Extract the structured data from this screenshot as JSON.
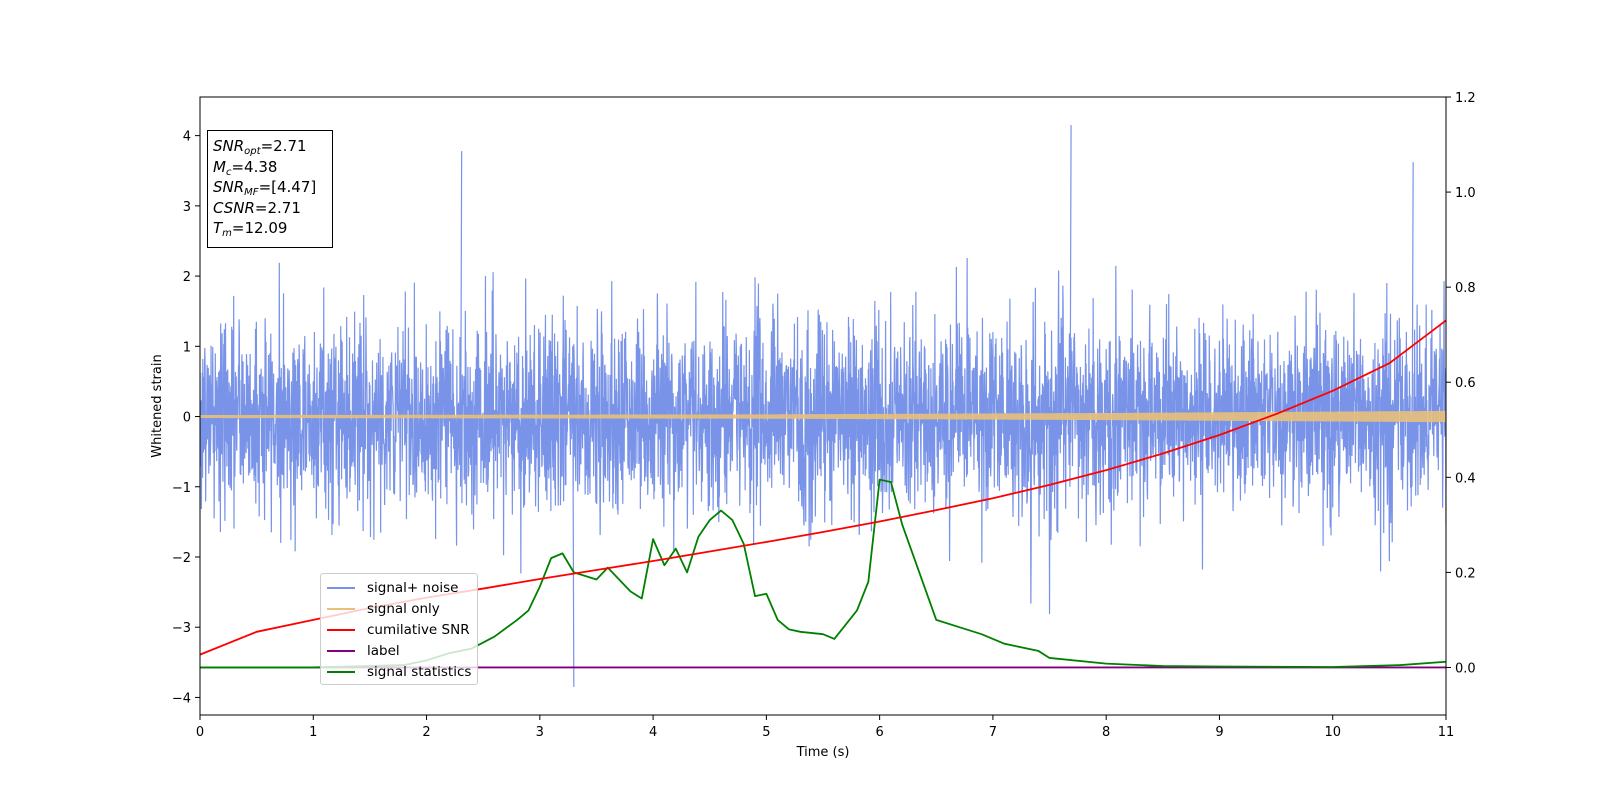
{
  "chart_data": {
    "type": "line",
    "xlabel": "Time (s)",
    "ylabel": "Whitened strain",
    "xlim": [
      0,
      11
    ],
    "ylim": [
      -4.25,
      4.55
    ],
    "y2lim": [
      -0.1,
      1.2
    ],
    "x_ticks": [
      "0",
      "1",
      "2",
      "3",
      "4",
      "5",
      "6",
      "7",
      "8",
      "9",
      "10",
      "11"
    ],
    "y_ticks": [
      "−4",
      "−3",
      "−2",
      "−1",
      "0",
      "1",
      "2",
      "3",
      "4"
    ],
    "y2_ticks": [
      "0.0",
      "0.2",
      "0.4",
      "0.6",
      "0.8",
      "1.0",
      "1.2"
    ],
    "stats": {
      "snr_opt": {
        "base": "SNR",
        "sub": "opt",
        "value": "=2.71"
      },
      "mc": {
        "base": "M",
        "sub": "c",
        "value": "=4.38"
      },
      "snr_mf": {
        "base": "SNR",
        "sub": "MF",
        "value": "=[4.47]"
      },
      "csnr": {
        "base": "CSNR",
        "value": "=2.71"
      },
      "tm": {
        "base": "T",
        "sub": "m",
        "value": "=12.09"
      }
    },
    "legend_position": "lower-left",
    "series": [
      {
        "name": "signal+ noise",
        "color": "#7893e8",
        "axis": "left",
        "description": "noise band approx -2 to +2, spikes to +4.15 and -3.85"
      },
      {
        "name": "signal only",
        "color": "#e8c07a",
        "axis": "left",
        "x": [
          0,
          5,
          8,
          11
        ],
        "amplitude": [
          0.02,
          0.03,
          0.05,
          0.08
        ]
      },
      {
        "name": "cumilative SNR",
        "color": "#ff0000",
        "axis": "right",
        "x": [
          0,
          0.5,
          1,
          1.5,
          2,
          2.5,
          3,
          3.5,
          4,
          4.5,
          5,
          5.5,
          6,
          6.5,
          7,
          7.5,
          8,
          8.5,
          9,
          9.5,
          10,
          10.5,
          11
        ],
        "values": [
          0.027,
          0.075,
          0.1,
          0.125,
          0.147,
          0.166,
          0.186,
          0.205,
          0.224,
          0.244,
          0.264,
          0.285,
          0.307,
          0.331,
          0.356,
          0.384,
          0.415,
          0.45,
          0.489,
          0.533,
          0.582,
          0.64,
          0.73
        ]
      },
      {
        "name": "label",
        "color": "#800080",
        "axis": "right",
        "x": [
          0,
          11
        ],
        "values": [
          0.0,
          0.0
        ]
      },
      {
        "name": "signal statistics",
        "color": "#008000",
        "axis": "right",
        "x": [
          0,
          1,
          1.8,
          2.0,
          2.2,
          2.4,
          2.6,
          2.8,
          2.9,
          3.0,
          3.1,
          3.2,
          3.3,
          3.5,
          3.6,
          3.8,
          3.9,
          4.0,
          4.1,
          4.2,
          4.3,
          4.4,
          4.5,
          4.6,
          4.7,
          4.8,
          4.9,
          5.0,
          5.1,
          5.2,
          5.3,
          5.5,
          5.6,
          5.8,
          5.9,
          6.0,
          6.1,
          6.2,
          6.5,
          6.7,
          6.9,
          7.1,
          7.4,
          7.5,
          8.0,
          8.5,
          9.0,
          10.0,
          10.6,
          11.0
        ],
        "values": [
          0.0,
          0.0,
          0.005,
          0.015,
          0.03,
          0.04,
          0.065,
          0.1,
          0.12,
          0.17,
          0.23,
          0.24,
          0.2,
          0.185,
          0.21,
          0.16,
          0.145,
          0.27,
          0.215,
          0.25,
          0.2,
          0.275,
          0.31,
          0.33,
          0.31,
          0.26,
          0.15,
          0.155,
          0.1,
          0.08,
          0.075,
          0.07,
          0.06,
          0.12,
          0.18,
          0.395,
          0.39,
          0.3,
          0.1,
          0.085,
          0.07,
          0.05,
          0.035,
          0.02,
          0.008,
          0.003,
          0.002,
          0.001,
          0.005,
          0.012
        ]
      }
    ]
  }
}
